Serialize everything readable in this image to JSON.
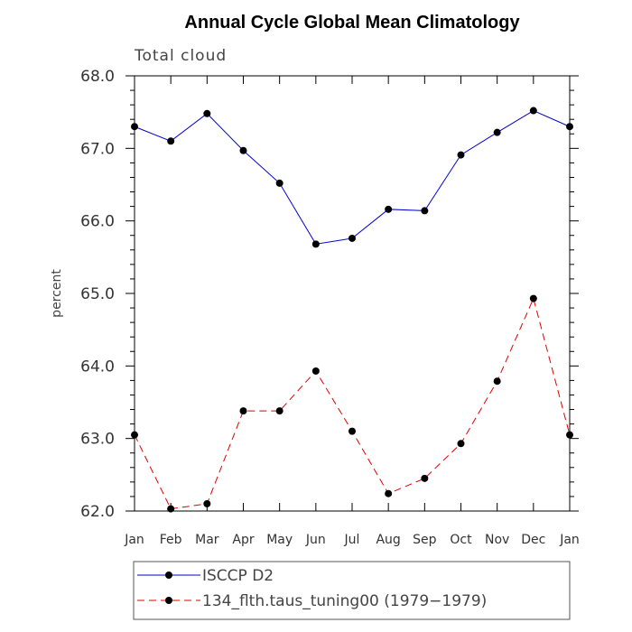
{
  "chart_data": {
    "type": "line",
    "title": "Annual Cycle Global Mean Climatology",
    "subtitle": "Total cloud",
    "xlabel": "",
    "ylabel": "percent",
    "categories": [
      "Jan",
      "Feb",
      "Mar",
      "Apr",
      "May",
      "Jun",
      "Jul",
      "Aug",
      "Sep",
      "Oct",
      "Nov",
      "Dec",
      "Jan"
    ],
    "ylim": [
      62.0,
      68.0
    ],
    "yticks": [
      "62.0",
      "63.0",
      "64.0",
      "65.0",
      "66.0",
      "67.0",
      "68.0"
    ],
    "series": [
      {
        "name": "ISCCP D2",
        "color": "#0000cc",
        "dash": "solid",
        "marker": "circle",
        "values": [
          67.3,
          67.1,
          67.48,
          66.97,
          66.52,
          65.68,
          65.76,
          66.16,
          66.14,
          66.91,
          67.22,
          67.52,
          67.3
        ]
      },
      {
        "name": "134_flth.taus_tuning00 (1979-1979)",
        "color": "#dd0000",
        "dash": "dashed",
        "marker": "circle",
        "values": [
          63.05,
          62.03,
          62.1,
          63.38,
          63.38,
          63.93,
          63.1,
          62.24,
          62.45,
          62.93,
          63.79,
          64.93,
          63.05
        ]
      }
    ],
    "legend": {
      "position": "bottom",
      "labels": [
        "ISCCP D2",
        "134_flth.taus_tuning00 (1979−1979)"
      ]
    }
  }
}
